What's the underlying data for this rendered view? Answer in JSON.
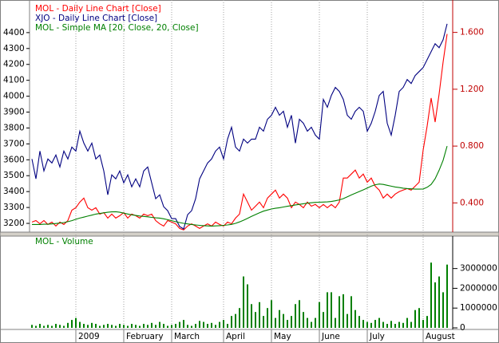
{
  "chart_data": [
    {
      "type": "line",
      "series": [
        {
          "name": "MOL - Daily Line Chart [Close]",
          "color": "#ff0000",
          "axis": "y2",
          "values": [
            0.265,
            0.276,
            0.253,
            0.276,
            0.248,
            0.265,
            0.237,
            0.265,
            0.248,
            0.276,
            0.349,
            0.366,
            0.406,
            0.434,
            0.366,
            0.349,
            0.366,
            0.321,
            0.332,
            0.293,
            0.321,
            0.293,
            0.31,
            0.332,
            0.293,
            0.321,
            0.31,
            0.293,
            0.321,
            0.31,
            0.321,
            0.276,
            0.253,
            0.237,
            0.276,
            0.265,
            0.253,
            0.22,
            0.21,
            0.237,
            0.253,
            0.237,
            0.22,
            0.237,
            0.253,
            0.237,
            0.265,
            0.248,
            0.237,
            0.265,
            0.253,
            0.293,
            0.321,
            0.462,
            0.406,
            0.349,
            0.377,
            0.406,
            0.366,
            0.434,
            0.462,
            0.49,
            0.434,
            0.462,
            0.434,
            0.366,
            0.406,
            0.389,
            0.366,
            0.406,
            0.377,
            0.389,
            0.366,
            0.389,
            0.366,
            0.389,
            0.366,
            0.406,
            0.575,
            0.575,
            0.603,
            0.631,
            0.575,
            0.603,
            0.546,
            0.575,
            0.518,
            0.49,
            0.434,
            0.462,
            0.434,
            0.462,
            0.479,
            0.49,
            0.501,
            0.49,
            0.518,
            0.546,
            0.772,
            0.941,
            1.138,
            0.969,
            1.167,
            1.392,
            1.589
          ]
        },
        {
          "name": "XJO - Daily Line Chart [Close]",
          "color": "#000080",
          "values": [
            3605,
            3480,
            3655,
            3530,
            3605,
            3580,
            3630,
            3555,
            3655,
            3605,
            3680,
            3655,
            3780,
            3705,
            3655,
            3705,
            3605,
            3630,
            3530,
            3380,
            3505,
            3480,
            3530,
            3455,
            3505,
            3430,
            3480,
            3430,
            3530,
            3555,
            3455,
            3355,
            3380,
            3305,
            3280,
            3230,
            3230,
            3180,
            3165,
            3255,
            3280,
            3355,
            3480,
            3530,
            3580,
            3605,
            3655,
            3680,
            3605,
            3730,
            3805,
            3680,
            3655,
            3730,
            3705,
            3730,
            3730,
            3805,
            3780,
            3855,
            3880,
            3930,
            3880,
            3905,
            3805,
            3880,
            3705,
            3855,
            3830,
            3780,
            3805,
            3755,
            3730,
            3980,
            3930,
            4005,
            4055,
            4030,
            3980,
            3880,
            3855,
            3905,
            3930,
            3905,
            3780,
            3830,
            3905,
            4005,
            4030,
            3830,
            3755,
            3880,
            4030,
            4055,
            4105,
            4080,
            4130,
            4155,
            4180,
            4230,
            4280,
            4330,
            4305,
            4355,
            4455
          ]
        },
        {
          "name": "MOL - Simple MA [20, Close, 20, Close]",
          "color": "#008000",
          "axis": "y2",
          "values": [
            0.248,
            0.248,
            0.248,
            0.25,
            0.25,
            0.252,
            0.255,
            0.258,
            0.262,
            0.268,
            0.275,
            0.285,
            0.293,
            0.3,
            0.307,
            0.314,
            0.321,
            0.326,
            0.33,
            0.334,
            0.337,
            0.338,
            0.334,
            0.328,
            0.322,
            0.316,
            0.312,
            0.308,
            0.305,
            0.302,
            0.298,
            0.295,
            0.293,
            0.288,
            0.282,
            0.275,
            0.268,
            0.262,
            0.256,
            0.252,
            0.248,
            0.245,
            0.242,
            0.24,
            0.238,
            0.237,
            0.238,
            0.24,
            0.242,
            0.245,
            0.249,
            0.256,
            0.266,
            0.278,
            0.291,
            0.305,
            0.318,
            0.33,
            0.342,
            0.35,
            0.357,
            0.362,
            0.366,
            0.371,
            0.376,
            0.381,
            0.386,
            0.39,
            0.394,
            0.398,
            0.401,
            0.404,
            0.405,
            0.406,
            0.407,
            0.41,
            0.415,
            0.421,
            0.43,
            0.443,
            0.456,
            0.468,
            0.48,
            0.492,
            0.505,
            0.518,
            0.528,
            0.533,
            0.53,
            0.524,
            0.518,
            0.512,
            0.508,
            0.504,
            0.501,
            0.499,
            0.497,
            0.497,
            0.498,
            0.51,
            0.53,
            0.57,
            0.63,
            0.7,
            0.8
          ]
        }
      ],
      "ylim": [
        3150,
        4580
      ],
      "yticks": [
        3200,
        3300,
        3400,
        3500,
        3600,
        3700,
        3800,
        3900,
        4000,
        4100,
        4200,
        4300,
        4400
      ],
      "y2lim": [
        0.2,
        1.8
      ],
      "y2ticks": [
        {
          "value": 0.4,
          "label": "0.400"
        },
        {
          "value": 0.8,
          "label": "0.800"
        },
        {
          "value": 1.2,
          "label": "1.200"
        },
        {
          "value": 1.6,
          "label": "1.600"
        }
      ],
      "legend": "top-left"
    },
    {
      "type": "bar",
      "categories": [
        null,
        null,
        null,
        null,
        null,
        null,
        null,
        null,
        null,
        null,
        null,
        "2009",
        null,
        null,
        null,
        null,
        null,
        null,
        null,
        null,
        null,
        null,
        null,
        "February",
        null,
        null,
        null,
        null,
        null,
        null,
        null,
        null,
        null,
        null,
        null,
        "March",
        null,
        null,
        null,
        null,
        null,
        null,
        null,
        null,
        null,
        null,
        null,
        null,
        "April",
        null,
        null,
        null,
        null,
        null,
        null,
        null,
        null,
        null,
        null,
        null,
        "May",
        null,
        null,
        null,
        null,
        null,
        null,
        null,
        null,
        null,
        null,
        null,
        "June",
        null,
        null,
        null,
        null,
        null,
        null,
        null,
        null,
        null,
        null,
        null,
        "July",
        null,
        null,
        null,
        null,
        null,
        null,
        null,
        null,
        null,
        null,
        null,
        null,
        null,
        "August",
        null,
        null,
        null,
        null,
        null,
        null
      ],
      "series": [
        {
          "name": "MOL - Volume",
          "color": "#008000",
          "values": [
            150000,
            100000,
            200000,
            100000,
            150000,
            100000,
            200000,
            150000,
            100000,
            250000,
            400000,
            500000,
            300000,
            200000,
            150000,
            250000,
            200000,
            100000,
            150000,
            200000,
            150000,
            100000,
            200000,
            150000,
            100000,
            200000,
            150000,
            100000,
            200000,
            150000,
            250000,
            150000,
            300000,
            200000,
            100000,
            150000,
            200000,
            300000,
            400000,
            150000,
            100000,
            200000,
            350000,
            300000,
            200000,
            250000,
            150000,
            300000,
            400000,
            200000,
            600000,
            700000,
            1000000,
            2600000,
            2200000,
            1200000,
            800000,
            1300000,
            600000,
            1000000,
            1400000,
            500000,
            900000,
            700000,
            400000,
            600000,
            1200000,
            1400000,
            800000,
            500000,
            300000,
            500000,
            1300000,
            800000,
            1800000,
            1800000,
            500000,
            1600000,
            1700000,
            700000,
            1600000,
            900000,
            600000,
            400000,
            300000,
            250000,
            400000,
            500000,
            300000,
            200000,
            350000,
            200000,
            300000,
            250000,
            500000,
            300000,
            900000,
            1000000,
            400000,
            600000,
            3300000,
            2300000,
            2600000,
            1800000,
            3200000
          ]
        }
      ],
      "ylim": [
        0,
        4600000
      ],
      "yticks": [
        0,
        1000000,
        2000000,
        3000000
      ],
      "legend": "top-left"
    }
  ]
}
